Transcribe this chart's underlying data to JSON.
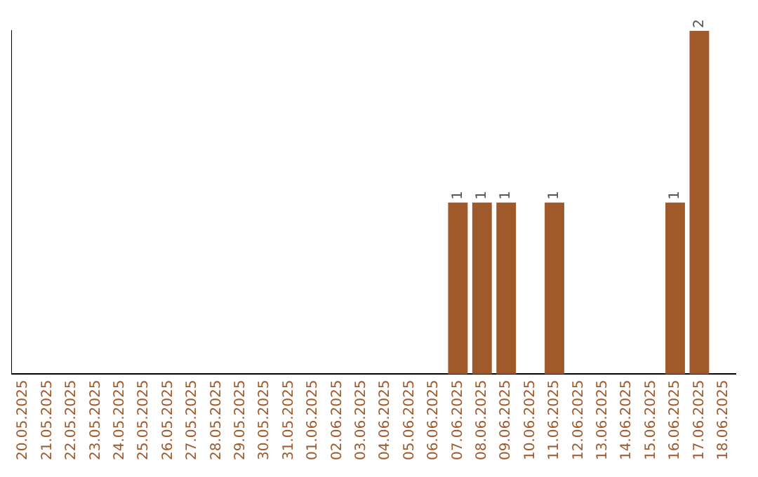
{
  "chart_data": {
    "type": "bar",
    "categories": [
      "20.05.2025",
      "21.05.2025",
      "22.05.2025",
      "23.05.2025",
      "24.05.2025",
      "25.05.2025",
      "26.05.2025",
      "27.05.2025",
      "28.05.2025",
      "29.05.2025",
      "30.05.2025",
      "31.05.2025",
      "01.06.2025",
      "02.06.2025",
      "03.06.2025",
      "04.06.2025",
      "05.06.2025",
      "06.06.2025",
      "07.06.2025",
      "08.06.2025",
      "09.06.2025",
      "10.06.2025",
      "11.06.2025",
      "12.06.2025",
      "13.06.2025",
      "14.06.2025",
      "15.06.2025",
      "16.06.2025",
      "17.06.2025",
      "18.06.2025"
    ],
    "values": [
      null,
      null,
      null,
      null,
      null,
      null,
      null,
      null,
      null,
      null,
      null,
      null,
      null,
      null,
      null,
      null,
      null,
      null,
      1,
      1,
      1,
      null,
      1,
      null,
      null,
      null,
      null,
      1,
      2,
      null
    ],
    "data_labels": true,
    "color": "#a0592b",
    "ylim": [
      0,
      2
    ],
    "tick_labels": "x",
    "grid": false,
    "legend": false
  }
}
